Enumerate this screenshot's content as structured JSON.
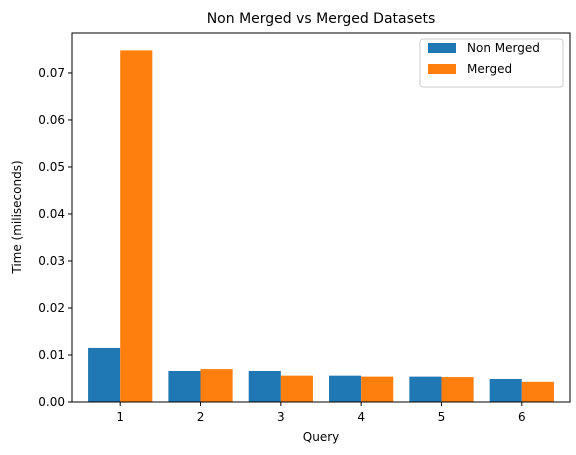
{
  "chart_data": {
    "type": "bar",
    "title": "Non Merged vs Merged Datasets",
    "xlabel": "Query",
    "ylabel": "Time (miliseconds)",
    "categories": [
      "1",
      "2",
      "3",
      "4",
      "5",
      "6"
    ],
    "series": [
      {
        "name": "Non Merged",
        "color": "#1f77b4",
        "values": [
          0.0115,
          0.0066,
          0.0066,
          0.0056,
          0.0054,
          0.0049
        ]
      },
      {
        "name": "Merged",
        "color": "#ff7f0e",
        "values": [
          0.0748,
          0.007,
          0.0056,
          0.0054,
          0.0053,
          0.0043
        ]
      }
    ],
    "ylim": [
      0,
      0.0785
    ],
    "yticks": [
      "0.00",
      "0.01",
      "0.02",
      "0.03",
      "0.04",
      "0.05",
      "0.06",
      "0.07"
    ],
    "grid": false,
    "legend": "top-right"
  }
}
